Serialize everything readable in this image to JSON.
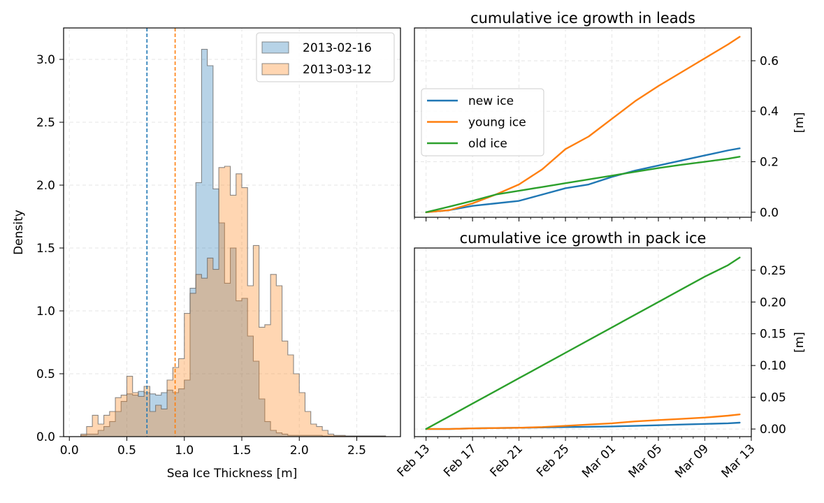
{
  "chart_data": [
    {
      "type": "histogram",
      "xlabel": "Sea Ice Thickness [m]",
      "ylabel": "Density",
      "xlim": [
        -0.05,
        2.88
      ],
      "ylim": [
        0,
        3.25
      ],
      "xticks": [
        "0.0",
        "0.5",
        "1.0",
        "1.5",
        "2.0",
        "2.5"
      ],
      "yticks": [
        "0.0",
        "0.5",
        "1.0",
        "1.5",
        "2.0",
        "2.5",
        "3.0"
      ],
      "grid": true,
      "legend_position": "top-right",
      "bin_width": 0.05,
      "series": [
        {
          "name": "2013-02-16",
          "color": "#1f77b4",
          "mean_line": 0.675,
          "bin_start": 0.1,
          "densities": [
            0.01,
            0.02,
            0.02,
            0.05,
            0.08,
            0.12,
            0.2,
            0.28,
            0.34,
            0.33,
            0.36,
            0.35,
            0.34,
            0.33,
            0.35,
            0.37,
            0.35,
            0.38,
            0.45,
            1.18,
            2.02,
            3.08,
            2.95,
            1.97,
            1.7,
            1.22,
            1.5,
            1.08,
            1.1,
            0.8,
            0.6,
            0.3,
            0.12,
            0.05,
            0.03,
            0.02,
            0.01,
            0.01,
            0.01,
            0.01,
            0.01,
            0.01,
            0.005,
            0.005,
            0.005,
            0.005,
            0.005,
            0.005,
            0.005,
            0.005,
            0.005,
            0.005,
            0.005
          ]
        },
        {
          "name": "2013-03-12",
          "color": "#ff7f0e",
          "mean_line": 0.92,
          "bin_start": 0.1,
          "densities": [
            0.02,
            0.08,
            0.17,
            0.1,
            0.17,
            0.2,
            0.31,
            0.33,
            0.48,
            0.35,
            0.32,
            0.4,
            0.2,
            0.25,
            0.22,
            0.45,
            0.55,
            0.62,
            0.98,
            1.14,
            1.29,
            1.26,
            1.42,
            1.33,
            2.14,
            2.15,
            1.92,
            2.09,
            1.98,
            1.2,
            1.52,
            0.87,
            0.89,
            1.29,
            1.2,
            0.76,
            0.65,
            0.5,
            0.35,
            0.2,
            0.1,
            0.08,
            0.05,
            0.02,
            0.01,
            0.01,
            0.005,
            0.005,
            0.005,
            0.005,
            0.005,
            0.005,
            0.005
          ]
        }
      ]
    },
    {
      "type": "line",
      "title": "cumulative ice growth in leads",
      "ylabel": "[m]",
      "ylim": [
        -0.02,
        0.73
      ],
      "yticks": [
        0.0,
        0.2,
        0.4,
        0.6
      ],
      "ytick_labels": [
        "0.0",
        "0.2",
        "0.4",
        "0.6"
      ],
      "xlim": [
        "2013-02-12",
        "2013-03-13"
      ],
      "grid": true,
      "legend_position": "center-left",
      "x": [
        "2013-02-13",
        "2013-02-15",
        "2013-02-17",
        "2013-02-19",
        "2013-02-21",
        "2013-02-23",
        "2013-02-25",
        "2013-02-27",
        "2013-03-01",
        "2013-03-03",
        "2013-03-05",
        "2013-03-07",
        "2013-03-09",
        "2013-03-11",
        "2013-03-12"
      ],
      "series": [
        {
          "name": "new ice",
          "color": "#1f77b4",
          "values": [
            0.0,
            0.008,
            0.025,
            0.035,
            0.045,
            0.07,
            0.095,
            0.11,
            0.14,
            0.165,
            0.185,
            0.205,
            0.225,
            0.245,
            0.253
          ]
        },
        {
          "name": "young ice",
          "color": "#ff7f0e",
          "values": [
            0.0,
            0.008,
            0.035,
            0.07,
            0.11,
            0.17,
            0.25,
            0.3,
            0.37,
            0.44,
            0.5,
            0.555,
            0.61,
            0.665,
            0.695
          ]
        },
        {
          "name": "old ice",
          "color": "#2ca02c",
          "values": [
            0.0,
            0.022,
            0.045,
            0.07,
            0.085,
            0.1,
            0.115,
            0.13,
            0.145,
            0.16,
            0.175,
            0.188,
            0.2,
            0.212,
            0.22
          ]
        }
      ]
    },
    {
      "type": "line",
      "title": "cumulative ice growth in pack ice",
      "ylabel": "[m]",
      "ylim": [
        -0.012,
        0.285
      ],
      "yticks": [
        0.0,
        0.05,
        0.1,
        0.15,
        0.2,
        0.25
      ],
      "ytick_labels": [
        "0.00",
        "0.05",
        "0.10",
        "0.15",
        "0.20",
        "0.25"
      ],
      "xlim": [
        "2013-02-12",
        "2013-03-13"
      ],
      "xticks": [
        "2013-02-13",
        "2013-02-17",
        "2013-02-21",
        "2013-02-25",
        "2013-03-01",
        "2013-03-05",
        "2013-03-09",
        "2013-03-13"
      ],
      "xtick_labels": [
        "Feb 13",
        "Feb 17",
        "Feb 21",
        "Feb 25",
        "Mar 01",
        "Mar 05",
        "Mar 09",
        "Mar 13"
      ],
      "grid": true,
      "x": [
        "2013-02-13",
        "2013-02-15",
        "2013-02-17",
        "2013-02-19",
        "2013-02-21",
        "2013-02-23",
        "2013-02-25",
        "2013-02-27",
        "2013-03-01",
        "2013-03-03",
        "2013-03-05",
        "2013-03-07",
        "2013-03-09",
        "2013-03-11",
        "2013-03-12"
      ],
      "series": [
        {
          "name": "new ice",
          "color": "#1f77b4",
          "values": [
            0.0,
            0.0,
            0.001,
            0.0015,
            0.002,
            0.0025,
            0.003,
            0.0035,
            0.004,
            0.005,
            0.006,
            0.007,
            0.008,
            0.009,
            0.01
          ]
        },
        {
          "name": "young ice",
          "color": "#ff7f0e",
          "values": [
            0.0,
            0.0,
            0.001,
            0.0015,
            0.002,
            0.003,
            0.005,
            0.007,
            0.009,
            0.012,
            0.014,
            0.016,
            0.018,
            0.021,
            0.023
          ]
        },
        {
          "name": "old ice",
          "color": "#2ca02c",
          "values": [
            0.0,
            0.02,
            0.04,
            0.06,
            0.08,
            0.1,
            0.12,
            0.14,
            0.16,
            0.18,
            0.2,
            0.22,
            0.24,
            0.258,
            0.27
          ]
        }
      ]
    }
  ]
}
